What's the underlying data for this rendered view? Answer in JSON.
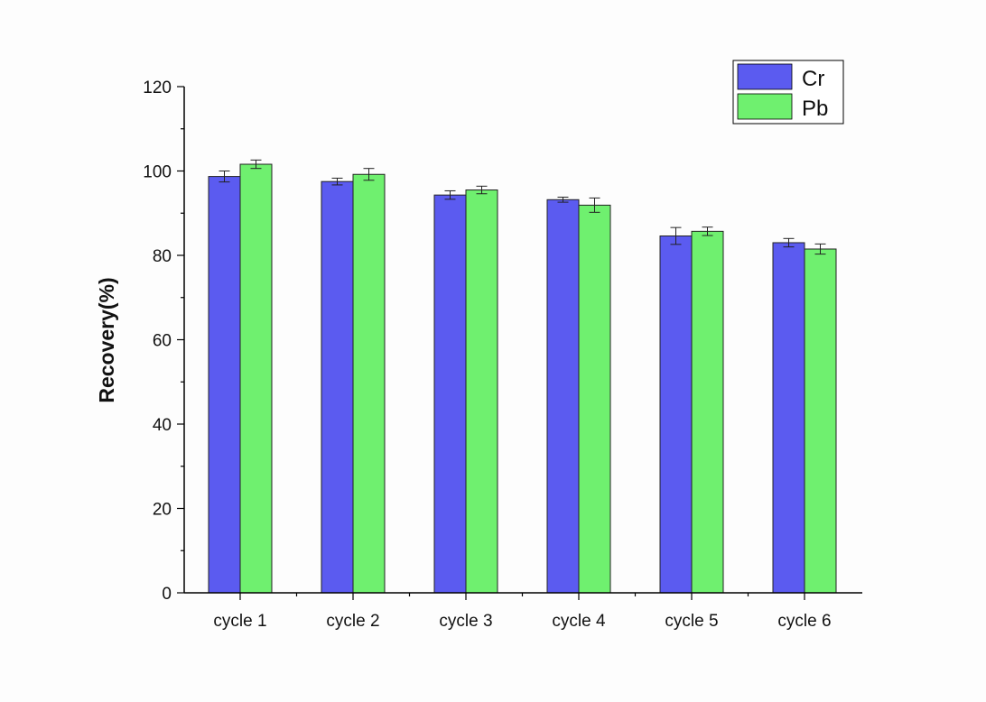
{
  "chart_data": {
    "type": "bar",
    "title": "",
    "xlabel": "",
    "ylabel": "Recovery(%)",
    "ylim": [
      0,
      120
    ],
    "yticks": [
      "0",
      "20",
      "40",
      "60",
      "80",
      "100",
      "120"
    ],
    "grid": false,
    "legend_position": "top-right",
    "categories": [
      "cycle 1",
      "cycle 2",
      "cycle 3",
      "cycle 4",
      "cycle 5",
      "cycle 6"
    ],
    "series": [
      {
        "name": "Cr",
        "color": "#5b5bf0",
        "values": [
          98.7,
          97.5,
          94.3,
          93.2,
          84.6,
          83.0
        ],
        "errors": [
          1.3,
          0.8,
          1.0,
          0.6,
          2.0,
          1.0
        ]
      },
      {
        "name": "Pb",
        "color": "#6ff06f",
        "values": [
          101.6,
          99.2,
          95.5,
          91.9,
          85.7,
          81.5
        ],
        "errors": [
          1.0,
          1.4,
          0.9,
          1.7,
          1.0,
          1.2
        ]
      }
    ]
  }
}
